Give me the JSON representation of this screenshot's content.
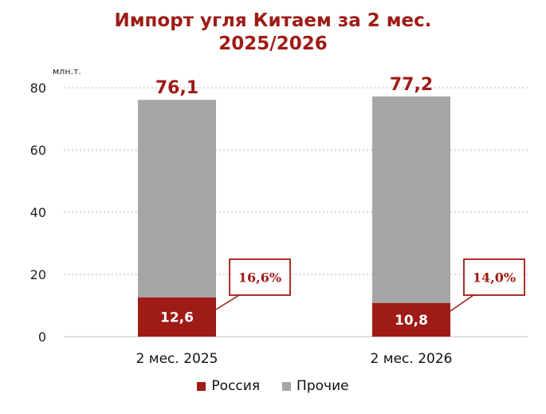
{
  "title": [
    "Импорт угля Китаем за 2 мес.",
    "2025/2026"
  ],
  "unit_label": "млн.т.",
  "colors": {
    "russia": "#9e1b16",
    "other": "#a6a6a6",
    "accent": "#9e1b16"
  },
  "chart_data": {
    "type": "bar",
    "stacked": true,
    "title": "Импорт угля Китаем за 2 мес. 2025/2026",
    "ylabel": "млн.т.",
    "ylim": [
      0,
      80
    ],
    "yticks": [
      "0",
      "20",
      "40",
      "60",
      "80"
    ],
    "grid": true,
    "legend_position": "bottom",
    "categories": [
      "2 мес. 2025",
      "2 мес. 2026"
    ],
    "series": [
      {
        "name": "Россия",
        "values": [
          12.6,
          10.8
        ],
        "labels": [
          "12,6",
          "10,8"
        ]
      },
      {
        "name": "Прочие",
        "values": [
          63.5,
          66.4
        ]
      }
    ],
    "totals": [
      76.1,
      77.2
    ],
    "total_labels": [
      "76,1",
      "77,2"
    ],
    "share_labels": [
      "16,6%",
      "14,0%"
    ]
  }
}
